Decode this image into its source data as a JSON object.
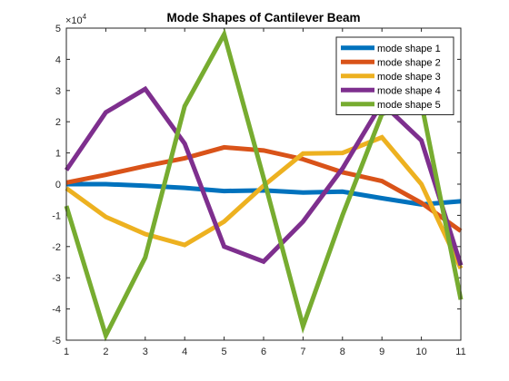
{
  "chart_data": {
    "type": "line",
    "title": "Mode Shapes of Cantilever Beam",
    "xlabel": "",
    "ylabel": "",
    "x": [
      1,
      2,
      3,
      4,
      5,
      6,
      7,
      8,
      9,
      10,
      11
    ],
    "xlim": [
      1,
      11
    ],
    "ylim": [
      -50000,
      50000
    ],
    "xticks": [
      1,
      2,
      3,
      4,
      5,
      6,
      7,
      8,
      9,
      10,
      11
    ],
    "yticks": [
      -50000,
      -40000,
      -30000,
      -20000,
      -10000,
      0,
      10000,
      20000,
      30000,
      40000,
      50000
    ],
    "ytick_labels": [
      "-5",
      "-4",
      "-3",
      "-2",
      "-1",
      "0",
      "1",
      "2",
      "3",
      "4",
      "5"
    ],
    "y_exponent_label": {
      "base": "×10",
      "exponent": "4"
    },
    "grid": false,
    "legend_position": "top-right",
    "series": [
      {
        "name": "mode shape 1",
        "color": "#0072BD",
        "values": [
          0,
          0,
          -500,
          -1200,
          -2200,
          -2000,
          -2700,
          -2400,
          -4500,
          -6500,
          -5500
        ]
      },
      {
        "name": "mode shape 2",
        "color": "#D95319",
        "values": [
          500,
          3000,
          5800,
          8300,
          11800,
          10800,
          8000,
          3800,
          1000,
          -6000,
          -15000
        ]
      },
      {
        "name": "mode shape 3",
        "color": "#EDB120",
        "values": [
          -1300,
          -10500,
          -16000,
          -19500,
          -12000,
          -500,
          9800,
          10000,
          15000,
          0,
          -27000
        ]
      },
      {
        "name": "mode shape 4",
        "color": "#7E2F8E",
        "values": [
          4500,
          23000,
          30500,
          13000,
          -20000,
          -24800,
          -12000,
          5000,
          26000,
          14000,
          -26000
        ]
      },
      {
        "name": "mode shape 5",
        "color": "#77AC30",
        "values": [
          -7000,
          -48500,
          -23500,
          25000,
          48000,
          2000,
          -45500,
          -10000,
          22500,
          26000,
          -37000
        ]
      }
    ]
  }
}
